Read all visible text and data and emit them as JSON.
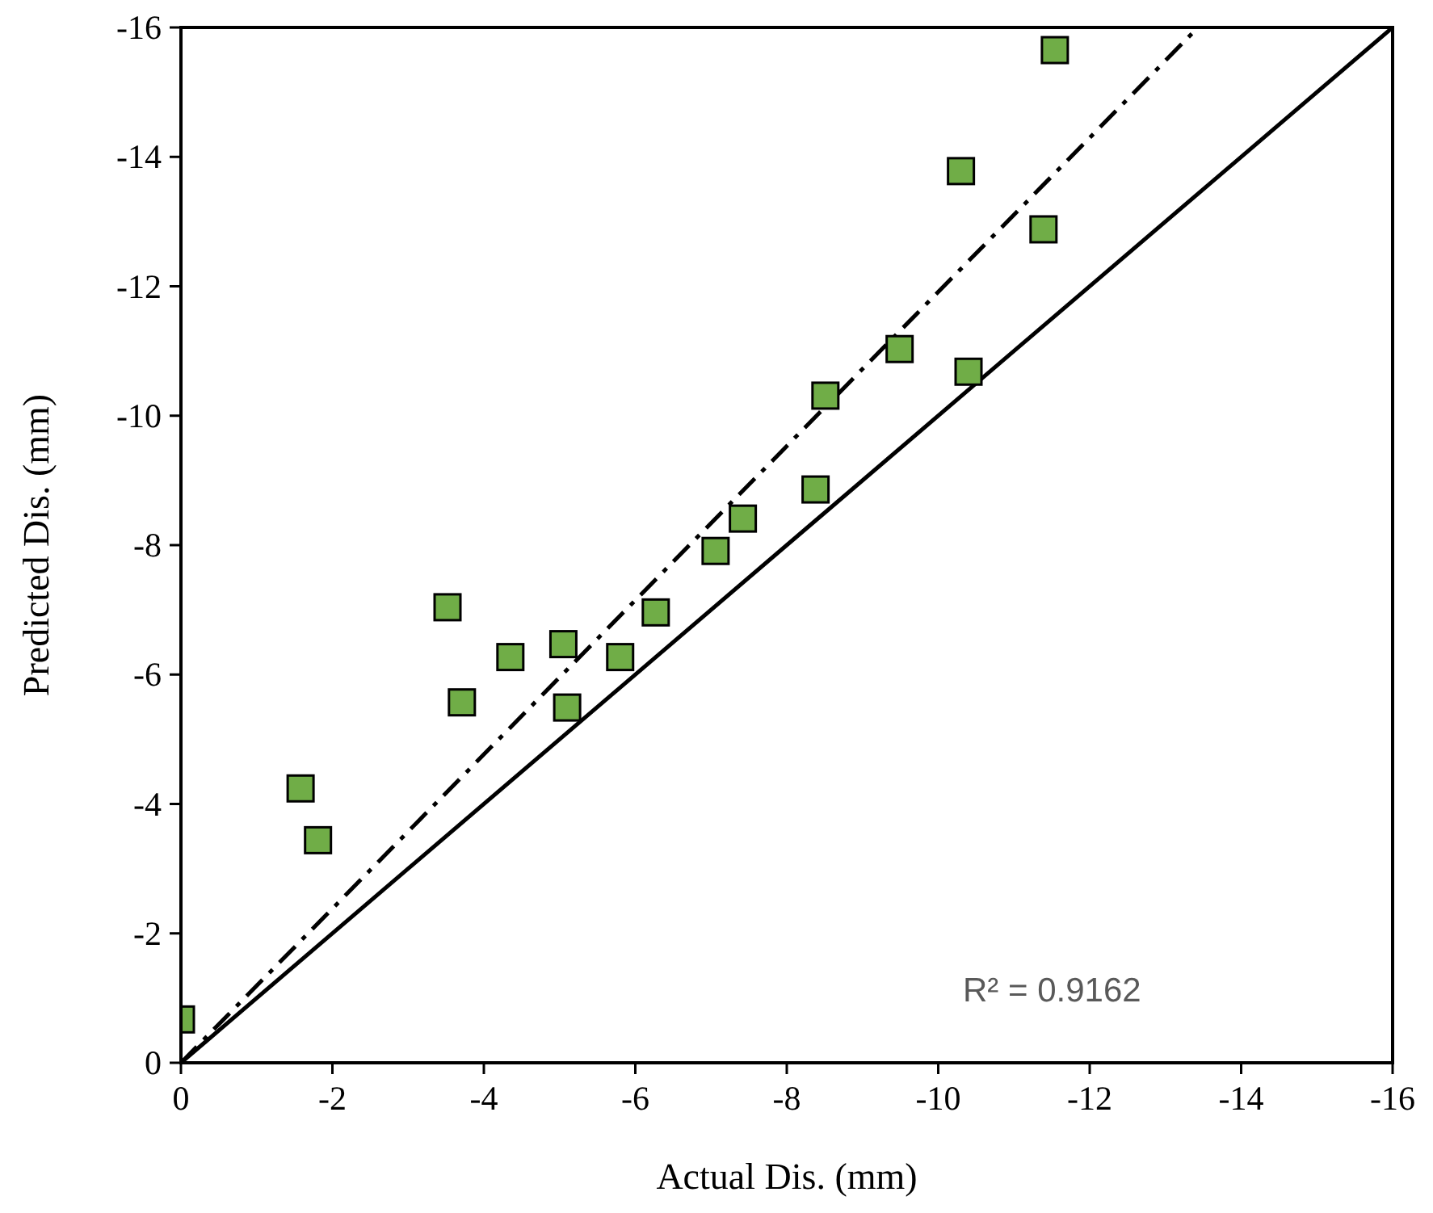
{
  "chart_data": {
    "type": "scatter",
    "xlabel": "Actual Dis. (mm)",
    "ylabel": "Predicted Dis. (mm)",
    "xlim": [
      0,
      -16
    ],
    "ylim": [
      0,
      -16
    ],
    "xticks": [
      0,
      -2,
      -4,
      -6,
      -8,
      -10,
      -12,
      -14,
      -16
    ],
    "yticks": [
      0,
      -2,
      -4,
      -6,
      -8,
      -10,
      -12,
      -14,
      -16
    ],
    "grid": false,
    "annotations": [
      "R² = 0.9162"
    ],
    "series": [
      {
        "marker": "square",
        "color": "#70ad47",
        "x": [
          0,
          -1.58,
          -1.81,
          -3.52,
          -3.71,
          -4.35,
          -5.05,
          -5.1,
          -5.8,
          -6.27,
          -7.06,
          -7.42,
          -8.38,
          -8.51,
          -9.49,
          -10.3,
          -10.4,
          -11.39,
          -11.54
        ],
        "values": [
          -0.67,
          -4.24,
          -3.44,
          -7.04,
          -5.57,
          -6.27,
          -6.47,
          -5.49,
          -6.27,
          -6.96,
          -7.91,
          -8.41,
          -8.86,
          -10.31,
          -11.03,
          -13.78,
          -10.68,
          -12.88,
          -15.65
        ]
      },
      {
        "type": "line",
        "color": "#000000",
        "line_style": "solid",
        "x": [
          0,
          -16
        ],
        "values": [
          0,
          -16
        ]
      },
      {
        "type": "line",
        "color": "#000000",
        "line_style": "dashed",
        "x": [
          0,
          -13.43
        ],
        "values": [
          0,
          -16
        ]
      }
    ]
  }
}
